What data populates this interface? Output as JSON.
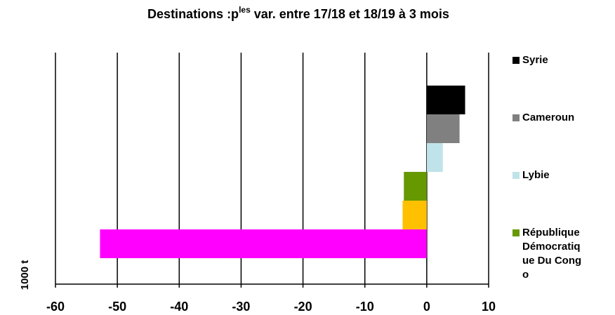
{
  "chart_data": {
    "type": "barh",
    "title": "Destinations :p",
    "title_superscript": "les",
    "title_rest": " var. entre 17/18 et 18/19 à 3 mois",
    "ylabel": "1000 t",
    "series": [
      {
        "name": "Syrie",
        "color": "#000000",
        "values": [
          6.2
        ]
      },
      {
        "name": "Cameroun",
        "color": "#808080",
        "values": [
          5.3
        ]
      },
      {
        "name": "Lybie",
        "color": "#bfe3e8",
        "values": [
          2.6
        ]
      },
      {
        "name": "République Démocratique Du Congo",
        "color": "#669900",
        "values": [
          -3.7
        ]
      },
      {
        "name": null,
        "color": "#ffc000",
        "values": [
          -3.9
        ]
      },
      {
        "name": null,
        "color": "#ff00ff",
        "values": [
          -52.8
        ]
      }
    ],
    "xlim": [
      -60,
      10
    ],
    "xticks": [
      -60,
      -50,
      -40,
      -30,
      -20,
      -10,
      0,
      10
    ],
    "grid": true,
    "legend": "right"
  }
}
